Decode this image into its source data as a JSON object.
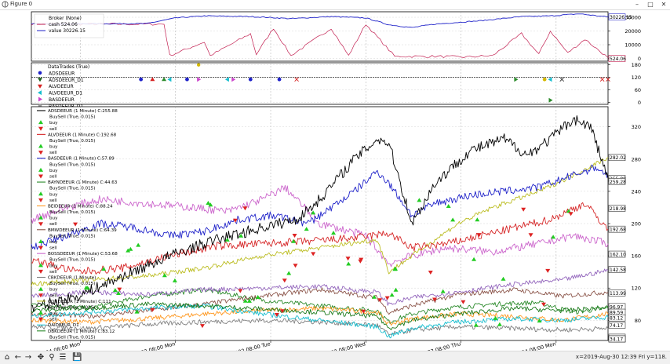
{
  "window": {
    "title": "Figure 0"
  },
  "toolbar": {
    "coords": "x=2019-Aug-30 12:39 Fri y=118."
  },
  "chart_data": [
    {
      "type": "line",
      "panel": "broker",
      "legend": [
        "Broker (None)",
        "cash 524.06",
        "value 30226.15"
      ],
      "yticks": [
        0,
        10000,
        20000,
        30000
      ],
      "ylim": [
        -2000,
        34000
      ],
      "end_labels": [
        "30226.15",
        "524.06"
      ],
      "series": [
        {
          "name": "cash 524.06",
          "color": "#c21d4f",
          "x": [
            0,
            0.23,
            0.24,
            0.3,
            0.31,
            0.38,
            0.39,
            0.42,
            0.45,
            0.52,
            0.55,
            0.58,
            0.63,
            0.7,
            0.75,
            0.8,
            0.85,
            0.88,
            0.9,
            0.93,
            0.96,
            1
          ],
          "y": [
            25000,
            25000,
            2000,
            12000,
            2000,
            18000,
            3000,
            22000,
            2000,
            22000,
            2000,
            25000,
            1500,
            1500,
            1000,
            2000,
            18000,
            3000,
            20000,
            4000,
            14000,
            524
          ]
        },
        {
          "name": "value 30226.15",
          "color": "#1f22c9",
          "x": [
            0,
            0.2,
            0.25,
            0.3,
            0.38,
            0.45,
            0.52,
            0.58,
            0.62,
            0.66,
            0.7,
            0.78,
            0.85,
            0.9,
            0.95,
            1
          ],
          "y": [
            25000,
            25400,
            29500,
            31000,
            30500,
            29000,
            30500,
            29500,
            24500,
            22500,
            25000,
            27500,
            30500,
            31000,
            32500,
            30226
          ]
        }
      ]
    },
    {
      "type": "scatter",
      "panel": "trades",
      "legend": [
        "DataTrades (True)",
        "ADSDEEUR",
        "ADSDEEUR_D1",
        "ALVDEEUR",
        "ALVDEEUR_D1",
        "BASDEEUR",
        "BASDEEUR_D1"
      ],
      "yticks": [
        0,
        60,
        120,
        180
      ],
      "ylim": [
        -10,
        190
      ],
      "hline": 120,
      "points": [
        {
          "x": 0.29,
          "y": 180,
          "m": "star",
          "c": "#d4b800"
        },
        {
          "x": 0.19,
          "y": 110,
          "m": "dot",
          "c": "#1f22c9"
        },
        {
          "x": 0.21,
          "y": 110,
          "m": "tri",
          "c": "#d62020"
        },
        {
          "x": 0.23,
          "y": 110,
          "m": "tri",
          "c": "#2a8a2a"
        },
        {
          "x": 0.24,
          "y": 110,
          "m": "ltri",
          "c": "#17becf"
        },
        {
          "x": 0.27,
          "y": 110,
          "m": "dot",
          "c": "#1f22c9"
        },
        {
          "x": 0.29,
          "y": 110,
          "m": "rtri",
          "c": "#cc44cc"
        },
        {
          "x": 0.34,
          "y": 110,
          "m": "ltri",
          "c": "#17becf"
        },
        {
          "x": 0.35,
          "y": 110,
          "m": "rtri",
          "c": "#cc44cc"
        },
        {
          "x": 0.38,
          "y": 110,
          "m": "dot",
          "c": "#1f22c9"
        },
        {
          "x": 0.43,
          "y": 110,
          "m": "dot",
          "c": "#1f22c9"
        },
        {
          "x": 0.46,
          "y": 110,
          "m": "x",
          "c": "#d62020"
        },
        {
          "x": 0.84,
          "y": 110,
          "m": "rtri",
          "c": "#2a8a2a"
        },
        {
          "x": 0.89,
          "y": 110,
          "m": "dot",
          "c": "#d4b800"
        },
        {
          "x": 0.9,
          "y": 110,
          "m": "ltri",
          "c": "#17becf"
        },
        {
          "x": 0.92,
          "y": 110,
          "m": "x",
          "c": "#333"
        },
        {
          "x": 0.99,
          "y": 110,
          "m": "x",
          "c": "#d62020"
        },
        {
          "x": 1.0,
          "y": 110,
          "m": "x",
          "c": "#d62020"
        },
        {
          "x": 0.9,
          "y": 10,
          "m": "rtri",
          "c": "#2a8a2a"
        }
      ]
    },
    {
      "type": "line",
      "panel": "prices",
      "ylim": [
        55,
        345
      ],
      "yticks": [
        80,
        120,
        160,
        200,
        240,
        280,
        320
      ],
      "xticks": [
        "20160104 08:00 Mon",
        "20170102 08:00 Mon",
        "20180102 08:00 Tue",
        "20190102 08:00 Wed",
        "20200102 08:00 Thu",
        "20210104 08:00 Mon"
      ],
      "legend": [
        {
          "label": "ADSDEEUR (1 Minute) C:255.88",
          "color": "#000000"
        },
        {
          "label": "BuySell (True, 0.015)",
          "color": null
        },
        {
          "label": "buy",
          "color": "#22cc22"
        },
        {
          "label": "sell",
          "color": "#dd2222"
        },
        {
          "label": "ALVDEEUR (1 Minute) C:192.68",
          "color": "#d62728"
        },
        {
          "label": "BuySell (True, 0.015)",
          "color": null
        },
        {
          "label": "buy",
          "color": "#22cc22"
        },
        {
          "label": "sell",
          "color": "#dd2222"
        },
        {
          "label": "BASDEEUR (1 Minute) C:57.89",
          "color": "#1f22c9"
        },
        {
          "label": "BuySell (True, 0.015)",
          "color": null
        },
        {
          "label": "buy",
          "color": "#22cc22"
        },
        {
          "label": "sell",
          "color": "#dd2222"
        },
        {
          "label": "BAYNDEEUR (1 Minute) C:44.63",
          "color": "#2a8a2a"
        },
        {
          "label": "BuySell (True, 0.015)",
          "color": null
        },
        {
          "label": "buy",
          "color": "#22cc22"
        },
        {
          "label": "sell",
          "color": "#dd2222"
        },
        {
          "label": "BEIDEEUR (1 Minute) C:88.24",
          "color": "#ff9922"
        },
        {
          "label": "BuySell (True, 0.015)",
          "color": null
        },
        {
          "label": "buy",
          "color": "#22cc22"
        },
        {
          "label": "sell",
          "color": "#dd2222"
        },
        {
          "label": "BMWDEEUR (1 Minute) C:64.39",
          "color": "#8c564b"
        },
        {
          "label": "BuySell (True, 0.015)",
          "color": null
        },
        {
          "label": "buy",
          "color": "#22cc22"
        },
        {
          "label": "sell",
          "color": "#dd2222"
        },
        {
          "label": "BOSSDEEUR (1 Minute) C:53.68",
          "color": "#cc66cc"
        },
        {
          "label": "BuySell (True, 0.015)",
          "color": null
        },
        {
          "label": "buy",
          "color": "#22cc22"
        },
        {
          "label": "sell",
          "color": "#dd2222"
        },
        {
          "label": "CBKDEEUR (1 Minute)",
          "color": "#7f7f7f"
        },
        {
          "label": "BuySell (True, 0.015)",
          "color": null
        },
        {
          "label": "buy",
          "color": "#22cc22"
        },
        {
          "label": "sell",
          "color": "#dd2222"
        },
        {
          "label": "CONDEEUR (1 Minute) C:111",
          "color": "#bcbd22"
        },
        {
          "label": "BuySell (True, 0.015)",
          "color": null
        },
        {
          "label": "buy",
          "color": "#22cc22"
        },
        {
          "label": "sell",
          "color": "#dd2222"
        },
        {
          "label": "DAIDEEUR_D1",
          "color": "#17becf"
        },
        {
          "label": "DBKDEEUR (1 Minute) C:83.12",
          "color": "#2a8a2a"
        },
        {
          "label": "BuySell (True, 0.015)",
          "color": null
        }
      ],
      "end_labels": [
        "282.02",
        "255.88",
        "259.28",
        "218.98",
        "192.68",
        "162.10",
        "142.58",
        "113.99",
        "96.97",
        "89.59",
        "83.12",
        "74.17",
        "59.21",
        "49.03",
        "38.89",
        "34.17"
      ],
      "series": [
        {
          "name": "ADSDEEUR",
          "color": "#000000",
          "x": [
            0,
            0.08,
            0.16,
            0.24,
            0.32,
            0.4,
            0.46,
            0.5,
            0.56,
            0.6,
            0.62,
            0.66,
            0.7,
            0.76,
            0.82,
            0.86,
            0.9,
            0.94,
            0.97,
            1.0
          ],
          "y": [
            95,
            110,
            135,
            160,
            180,
            195,
            205,
            230,
            280,
            305,
            300,
            200,
            250,
            290,
            305,
            285,
            305,
            330,
            320,
            256
          ]
        },
        {
          "name": "ALVDEEUR",
          "color": "#d62728",
          "x": [
            0,
            0.08,
            0.16,
            0.24,
            0.32,
            0.4,
            0.48,
            0.56,
            0.62,
            0.66,
            0.72,
            0.78,
            0.84,
            0.9,
            0.96,
            1.0
          ],
          "y": [
            155,
            140,
            145,
            160,
            172,
            175,
            178,
            182,
            188,
            170,
            175,
            185,
            195,
            205,
            225,
            193
          ]
        },
        {
          "name": "BASDEEUR",
          "color": "#1f22c9",
          "x": [
            0,
            0.06,
            0.12,
            0.18,
            0.24,
            0.3,
            0.36,
            0.42,
            0.48,
            0.56,
            0.6,
            0.62,
            0.66,
            0.7,
            0.76,
            0.82,
            0.88,
            0.94,
            0.98,
            1.0
          ],
          "y": [
            170,
            185,
            200,
            195,
            185,
            190,
            205,
            210,
            200,
            240,
            265,
            250,
            210,
            225,
            235,
            240,
            245,
            260,
            270,
            259
          ]
        },
        {
          "name": "BAYNDEEUR",
          "color": "#2a8a2a",
          "x": [
            0,
            0.1,
            0.2,
            0.3,
            0.4,
            0.5,
            0.6,
            0.62,
            0.66,
            0.72,
            0.8,
            0.88,
            0.94,
            1.0
          ],
          "y": [
            100,
            95,
            110,
            118,
            105,
            98,
            92,
            78,
            88,
            95,
            100,
            102,
            90,
            95
          ]
        },
        {
          "name": "BEIDEEUR",
          "color": "#ff9922",
          "x": [
            0,
            0.1,
            0.2,
            0.3,
            0.4,
            0.5,
            0.6,
            0.62,
            0.66,
            0.74,
            0.84,
            0.92,
            1.0
          ],
          "y": [
            80,
            78,
            82,
            88,
            92,
            95,
            90,
            75,
            82,
            88,
            85,
            80,
            88
          ]
        },
        {
          "name": "BMWDEEUR",
          "color": "#8c564b",
          "x": [
            0,
            0.1,
            0.2,
            0.3,
            0.4,
            0.5,
            0.6,
            0.62,
            0.66,
            0.74,
            0.84,
            0.92,
            1.0
          ],
          "y": [
            88,
            85,
            92,
            100,
            110,
            118,
            108,
            90,
            98,
            112,
            118,
            110,
            115
          ]
        },
        {
          "name": "BOSSDEEUR",
          "color": "#cc66cc",
          "x": [
            0,
            0.06,
            0.12,
            0.2,
            0.28,
            0.34,
            0.4,
            0.44,
            0.5,
            0.58,
            0.62,
            0.66,
            0.72,
            0.8,
            0.88,
            0.94,
            1.0
          ],
          "y": [
            205,
            220,
            230,
            225,
            220,
            215,
            230,
            245,
            200,
            185,
            150,
            160,
            170,
            165,
            175,
            185,
            175
          ]
        },
        {
          "name": "CBKDEEUR",
          "color": "#7f7f7f",
          "x": [
            0,
            0.1,
            0.2,
            0.3,
            0.4,
            0.5,
            0.6,
            0.62,
            0.66,
            0.74,
            0.84,
            0.92,
            1.0
          ],
          "y": [
            72,
            70,
            75,
            78,
            80,
            78,
            74,
            62,
            68,
            72,
            70,
            68,
            70
          ]
        },
        {
          "name": "CONDEEUR",
          "color": "#bcbd22",
          "x": [
            0,
            0.1,
            0.2,
            0.3,
            0.4,
            0.5,
            0.6,
            0.62,
            0.66,
            0.74,
            0.8,
            0.88,
            0.94,
            1.0
          ],
          "y": [
            125,
            130,
            135,
            145,
            160,
            170,
            180,
            140,
            160,
            200,
            220,
            240,
            260,
            282
          ]
        },
        {
          "name": "DAIDEEUR_D1",
          "color": "#17becf",
          "x": [
            0,
            0.1,
            0.2,
            0.3,
            0.4,
            0.5,
            0.6,
            0.62,
            0.66,
            0.74,
            0.84,
            0.92,
            1.0
          ],
          "y": [
            85,
            90,
            95,
            98,
            88,
            80,
            72,
            60,
            70,
            78,
            82,
            80,
            84
          ]
        },
        {
          "name": "DBKDEEUR",
          "color": "#1b7a1b",
          "x": [
            0,
            0.1,
            0.2,
            0.3,
            0.4,
            0.5,
            0.6,
            0.62,
            0.66,
            0.74,
            0.84,
            0.92,
            1.0
          ],
          "y": [
            92,
            95,
            100,
            98,
            94,
            90,
            85,
            70,
            80,
            88,
            95,
            92,
            96
          ]
        },
        {
          "name": "extra",
          "color": "#9467bd",
          "x": [
            0,
            0.1,
            0.2,
            0.3,
            0.4,
            0.5,
            0.6,
            0.62,
            0.66,
            0.74,
            0.84,
            0.92,
            1.0
          ],
          "y": [
            110,
            115,
            112,
            118,
            120,
            122,
            115,
            100,
            108,
            115,
            125,
            130,
            142
          ]
        }
      ]
    }
  ]
}
